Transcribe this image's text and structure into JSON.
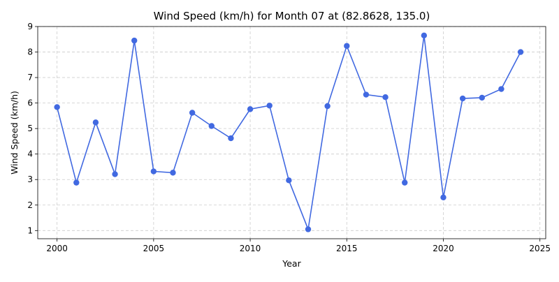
{
  "chart_data": {
    "type": "line",
    "title": "Wind Speed (km/h) for Month 07 at (82.8628, 135.0)",
    "xlabel": "Year",
    "ylabel": "Wind Speed (km/h)",
    "xlim": [
      1999.0,
      2025.3
    ],
    "ylim": [
      0.68,
      9.0
    ],
    "xticks": [
      2000,
      2005,
      2010,
      2015,
      2020,
      2025
    ],
    "yticks": [
      1,
      2,
      3,
      4,
      5,
      6,
      7,
      8,
      9
    ],
    "grid": true,
    "marker": "circle",
    "line_color": "#4169e1",
    "series": [
      {
        "x": [
          2000,
          2001,
          2002,
          2003,
          2004,
          2005,
          2006,
          2007,
          2008,
          2009,
          2010,
          2011,
          2012,
          2013,
          2014,
          2015,
          2016,
          2017,
          2018,
          2019,
          2020,
          2021,
          2022,
          2023,
          2024
        ],
        "values": [
          5.84,
          2.88,
          5.24,
          3.21,
          8.45,
          3.32,
          3.27,
          5.62,
          5.1,
          4.62,
          5.76,
          5.9,
          2.97,
          1.05,
          5.88,
          8.24,
          6.33,
          6.23,
          2.88,
          8.65,
          2.3,
          6.18,
          6.21,
          6.55,
          8.0
        ]
      }
    ]
  }
}
